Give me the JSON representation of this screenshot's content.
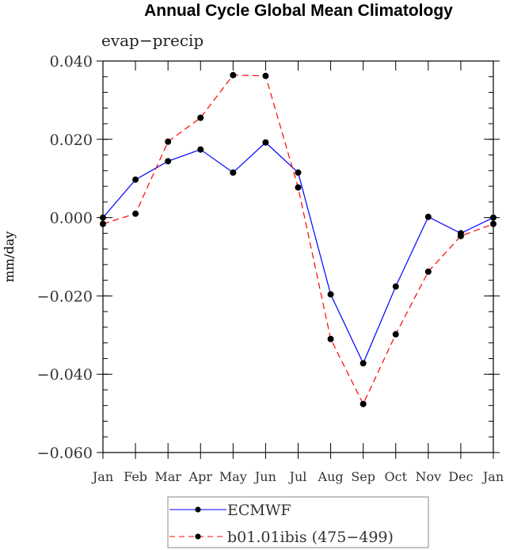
{
  "chart_data": {
    "type": "line",
    "title": "Annual Cycle Global Mean Climatology",
    "subtitle": "evap−precip",
    "xlabel": "",
    "ylabel": "mm/day",
    "categories": [
      "Jan",
      "Feb",
      "Mar",
      "Apr",
      "May",
      "Jun",
      "Jul",
      "Aug",
      "Sep",
      "Oct",
      "Nov",
      "Dec",
      "Jan"
    ],
    "ylim": [
      -0.06,
      0.04
    ],
    "yticks": [
      0.04,
      0.02,
      0.0,
      -0.02,
      -0.04,
      -0.06
    ],
    "ytick_labels": [
      "0.040",
      "0.020",
      "0.000",
      "−0.020",
      "−0.040",
      "−0.060"
    ],
    "grid": false,
    "legend_placement": "bottom-center",
    "series": [
      {
        "name": "ECMWF",
        "color": "#0000ff",
        "dash": "solid",
        "values": [
          0.0,
          0.0097,
          0.0144,
          0.0174,
          0.0115,
          0.0192,
          0.0115,
          -0.0196,
          -0.0372,
          -0.0176,
          0.0002,
          -0.004,
          0.0
        ]
      },
      {
        "name": "b01.01ibis (475−499)",
        "color": "#ff0000",
        "dash": "dashed",
        "values": [
          -0.0016,
          0.001,
          0.0194,
          0.0255,
          0.0364,
          0.0362,
          0.0077,
          -0.031,
          -0.0476,
          -0.0298,
          -0.0138,
          -0.0047,
          -0.0016
        ]
      }
    ]
  }
}
